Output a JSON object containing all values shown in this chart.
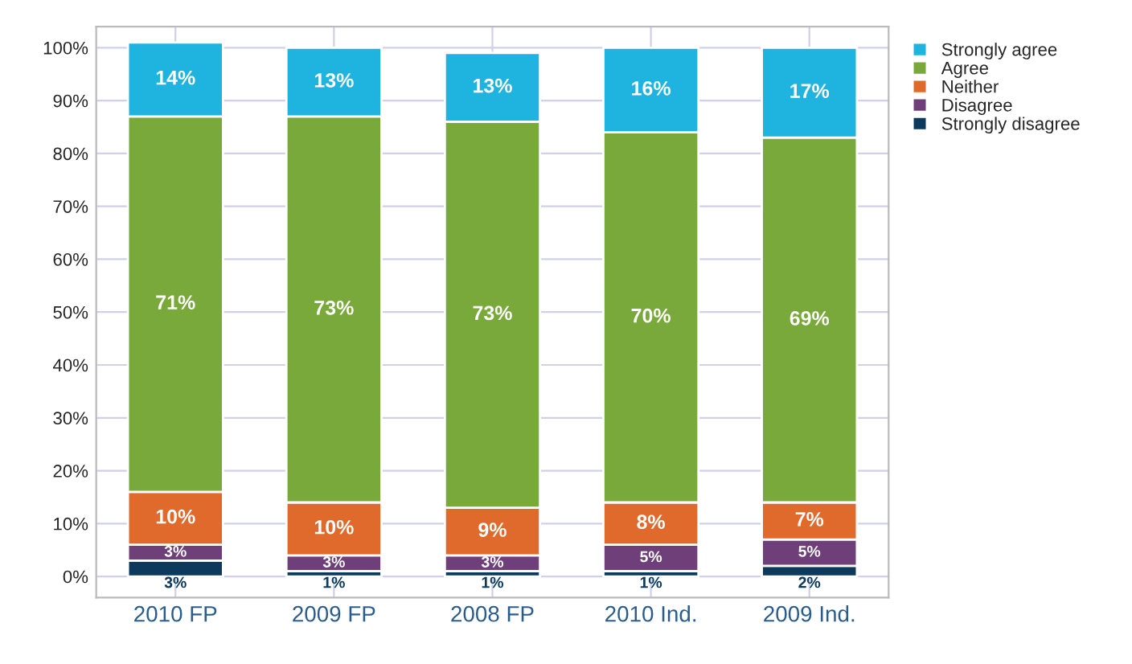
{
  "chart_data": {
    "type": "bar",
    "stacked": true,
    "categories": [
      "2010 FP",
      "2009 FP",
      "2008 FP",
      "2010 Ind.",
      "2009 Ind."
    ],
    "series": [
      {
        "name": "Strongly disagree",
        "color": "#0d3a5c",
        "values": [
          3,
          1,
          1,
          1,
          2
        ],
        "value_labels": [
          "3%",
          "1%",
          "1%",
          "1%",
          "2%"
        ]
      },
      {
        "name": "Disagree",
        "color": "#6e3f78",
        "values": [
          3,
          3,
          3,
          5,
          5
        ],
        "value_labels": [
          "3%",
          "3%",
          "3%",
          "5%",
          "5%"
        ]
      },
      {
        "name": "Neither",
        "color": "#e06a2c",
        "values": [
          10,
          10,
          9,
          8,
          7
        ],
        "value_labels": [
          "10%",
          "10%",
          "9%",
          "8%",
          "7%"
        ]
      },
      {
        "name": "Agree",
        "color": "#79a93a",
        "values": [
          71,
          73,
          73,
          70,
          69
        ],
        "value_labels": [
          "71%",
          "73%",
          "73%",
          "70%",
          "69%"
        ]
      },
      {
        "name": "Strongly agree",
        "color": "#1fb4e0",
        "values": [
          14,
          13,
          13,
          16,
          17
        ],
        "value_labels": [
          "14%",
          "13%",
          "13%",
          "16%",
          "17%"
        ]
      }
    ],
    "ylim": [
      -4,
      104
    ],
    "yticks": [
      {
        "value": 0,
        "label": "0%"
      },
      {
        "value": 10,
        "label": "10%"
      },
      {
        "value": 20,
        "label": "20%"
      },
      {
        "value": 30,
        "label": "30%"
      },
      {
        "value": 40,
        "label": "40%"
      },
      {
        "value": 50,
        "label": "50%"
      },
      {
        "value": 60,
        "label": "60%"
      },
      {
        "value": 70,
        "label": "70%"
      },
      {
        "value": 80,
        "label": "80%"
      },
      {
        "value": 90,
        "label": "90%"
      },
      {
        "value": 100,
        "label": "100%"
      }
    ],
    "grid": true,
    "legend": "top right"
  }
}
